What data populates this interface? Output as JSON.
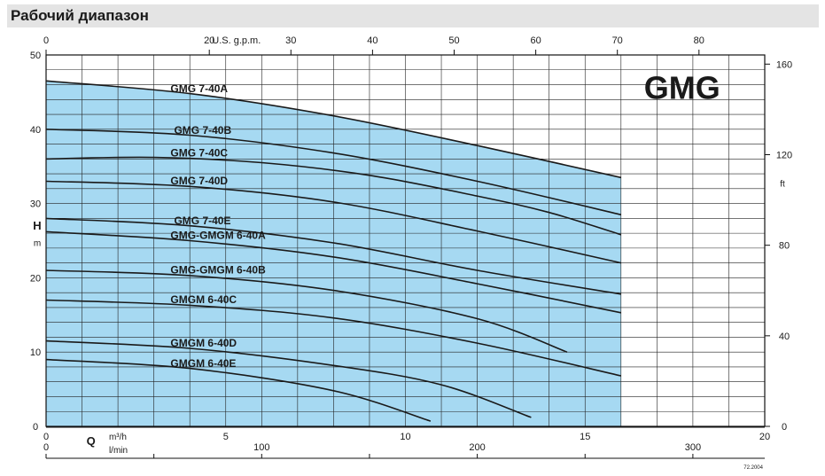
{
  "title": "Рабочий диапазон",
  "chart_data": {
    "type": "line",
    "watermark": "GMG",
    "code": "72.2004",
    "y_left": {
      "symbol": "H",
      "unit": "m",
      "ylim": [
        0,
        50
      ],
      "ticks": [
        0,
        10,
        20,
        30,
        40,
        50
      ]
    },
    "y_right": {
      "unit": "ft",
      "ticks": [
        0,
        40,
        80,
        120,
        160
      ]
    },
    "x_top": {
      "unit": "U.S. g.p.m.",
      "ticks": [
        0,
        20,
        30,
        40,
        50,
        60,
        70,
        80
      ]
    },
    "x_m3h": {
      "symbol": "Q",
      "unit": "m³/h",
      "xlim": [
        0,
        20
      ],
      "ticks": [
        0,
        5,
        10,
        15,
        20
      ]
    },
    "x_lmin": {
      "unit": "l/min",
      "ticks": [
        0,
        100,
        200,
        300
      ]
    },
    "operating_range_max_m3h": 16,
    "series": [
      {
        "name": "GMG 7-40A",
        "points": [
          [
            0,
            46.5
          ],
          [
            4,
            44.8
          ],
          [
            8,
            41.8
          ],
          [
            12,
            37.8
          ],
          [
            16,
            33.5
          ]
        ]
      },
      {
        "name": "GMG 7-40B",
        "points": [
          [
            0,
            40
          ],
          [
            4,
            39.2
          ],
          [
            8,
            36.8
          ],
          [
            12,
            33
          ],
          [
            16,
            28.5
          ]
        ]
      },
      {
        "name": "GMG 7-40C",
        "points": [
          [
            0,
            36
          ],
          [
            3,
            36.2
          ],
          [
            6,
            35.5
          ],
          [
            9,
            33.8
          ],
          [
            12,
            31
          ],
          [
            14,
            28.8
          ],
          [
            16,
            25.8
          ]
        ]
      },
      {
        "name": "GMG 7-40D",
        "points": [
          [
            0,
            33
          ],
          [
            4,
            32.3
          ],
          [
            8,
            30.2
          ],
          [
            12,
            26.3
          ],
          [
            16,
            22
          ]
        ]
      },
      {
        "name": "GMG 7-40E",
        "points": [
          [
            0,
            28
          ],
          [
            4,
            27
          ],
          [
            8,
            24.7
          ],
          [
            12,
            21
          ],
          [
            16,
            17.8
          ]
        ]
      },
      {
        "name": "GMG-GMGM 6-40A",
        "points": [
          [
            0,
            26.2
          ],
          [
            4,
            25
          ],
          [
            8,
            22.8
          ],
          [
            12,
            19.2
          ],
          [
            16,
            15.3
          ]
        ]
      },
      {
        "name": "GMG-GMGM 6-40B",
        "points": [
          [
            0,
            21
          ],
          [
            4,
            20.3
          ],
          [
            8,
            18.3
          ],
          [
            12,
            14.5
          ],
          [
            14.5,
            10
          ]
        ]
      },
      {
        "name": "GMGM 6-40C",
        "points": [
          [
            0,
            17
          ],
          [
            4,
            16.3
          ],
          [
            8,
            14.6
          ],
          [
            12,
            11.2
          ],
          [
            16,
            6.8
          ]
        ]
      },
      {
        "name": "GMGM 6-40D",
        "points": [
          [
            0,
            11.5
          ],
          [
            4,
            10.5
          ],
          [
            8,
            8.2
          ],
          [
            11,
            5.6
          ],
          [
            13.5,
            1.2
          ]
        ]
      },
      {
        "name": "GMGM 6-40E",
        "points": [
          [
            0,
            9
          ],
          [
            4,
            7.8
          ],
          [
            8,
            4.8
          ],
          [
            10.7,
            0.7
          ]
        ]
      }
    ]
  }
}
